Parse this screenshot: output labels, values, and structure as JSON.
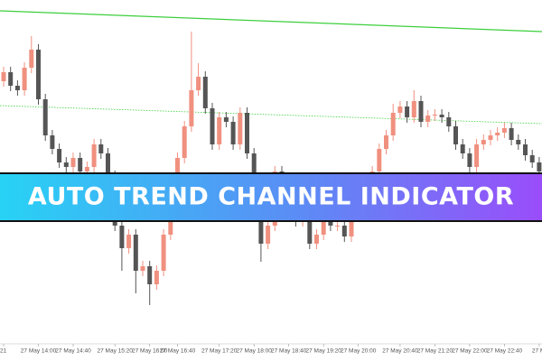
{
  "chart_data": {
    "type": "candlestick",
    "title": "AUTO TREND CHANNEL INDICATOR",
    "open": [
      310,
      320,
      305,
      300,
      325,
      345,
      290,
      250,
      235,
      220,
      215,
      225,
      210,
      215,
      240,
      230,
      205,
      150,
      125,
      140,
      100,
      105,
      85,
      100,
      140,
      200,
      225,
      260,
      300,
      315,
      280,
      240,
      270,
      265,
      240,
      275,
      230,
      195,
      130,
      150,
      210,
      200,
      190,
      155,
      160,
      130,
      140,
      160,
      150,
      150,
      138,
      170,
      200,
      200,
      210,
      235,
      250,
      275,
      282,
      270,
      288,
      265,
      272,
      273,
      270,
      260,
      240,
      230,
      215,
      240,
      245,
      250,
      253,
      258,
      245,
      240,
      228,
      220
    ],
    "high": [
      326,
      326,
      311,
      331,
      360,
      351,
      296,
      256,
      241,
      226,
      231,
      231,
      221,
      246,
      246,
      236,
      211,
      156,
      146,
      146,
      111,
      111,
      106,
      146,
      206,
      231,
      266,
      365,
      330,
      321,
      286,
      276,
      276,
      271,
      281,
      281,
      236,
      201,
      156,
      216,
      216,
      206,
      196,
      166,
      166,
      146,
      166,
      166,
      156,
      156,
      176,
      206,
      206,
      216,
      241,
      256,
      285,
      288,
      288,
      300,
      294,
      278,
      279,
      279,
      276,
      266,
      246,
      236,
      246,
      251,
      256,
      259,
      264,
      264,
      251,
      246,
      234,
      226
    ],
    "low": [
      304,
      299,
      294,
      294,
      319,
      284,
      244,
      229,
      214,
      209,
      209,
      204,
      204,
      209,
      224,
      199,
      144,
      100,
      119,
      75,
      94,
      62,
      79,
      94,
      134,
      194,
      219,
      254,
      294,
      274,
      234,
      234,
      259,
      234,
      234,
      224,
      189,
      110,
      124,
      144,
      194,
      184,
      149,
      149,
      124,
      124,
      134,
      144,
      144,
      132,
      132,
      164,
      194,
      194,
      204,
      229,
      244,
      269,
      264,
      264,
      259,
      259,
      266,
      264,
      254,
      234,
      224,
      209,
      209,
      234,
      239,
      244,
      247,
      239,
      234,
      222,
      214,
      204
    ],
    "close": [
      320,
      305,
      300,
      325,
      345,
      290,
      250,
      235,
      220,
      215,
      225,
      210,
      215,
      240,
      230,
      205,
      150,
      125,
      140,
      100,
      105,
      85,
      100,
      140,
      200,
      225,
      260,
      300,
      315,
      280,
      240,
      270,
      265,
      240,
      275,
      230,
      195,
      130,
      150,
      210,
      200,
      190,
      155,
      160,
      130,
      140,
      160,
      150,
      150,
      138,
      170,
      200,
      200,
      210,
      235,
      250,
      275,
      282,
      270,
      288,
      265,
      272,
      273,
      270,
      260,
      240,
      230,
      215,
      240,
      245,
      250,
      253,
      258,
      245,
      240,
      228,
      220,
      210
    ],
    "up_color": "#f0907f",
    "down_color": "#555555",
    "ylim": [
      0,
      400
    ],
    "xticks": [
      {
        "value": 0,
        "label": "21"
      },
      {
        "value": 5,
        "label": "27 May 14:00"
      },
      {
        "value": 10,
        "label": "27 May 14:40"
      },
      {
        "value": 16,
        "label": "27 May 15:20"
      },
      {
        "value": 21,
        "label": "27 May 16:00"
      },
      {
        "value": 25,
        "label": "27 May 16:40"
      },
      {
        "value": 31,
        "label": "27 May 17:20"
      },
      {
        "value": 36,
        "label": "27 May 18:00"
      },
      {
        "value": 41,
        "label": "27 May 18:40"
      },
      {
        "value": 46,
        "label": "27 May 19:20"
      },
      {
        "value": 51,
        "label": "27 May 20:00"
      },
      {
        "value": 57,
        "label": "27 May 20:40"
      },
      {
        "value": 62,
        "label": "27 May 21:20"
      },
      {
        "value": 67,
        "label": "27 May 22:00"
      },
      {
        "value": 72,
        "label": "27 May 22:40"
      },
      {
        "value": 77,
        "label": "27 M"
      }
    ],
    "channel_lines": [
      {
        "style": "solid",
        "color": "#3ccf3c",
        "start": 388,
        "end": 365
      },
      {
        "style": "dotted",
        "color": "#3ccf3c",
        "start": 283,
        "end": 263
      }
    ]
  }
}
